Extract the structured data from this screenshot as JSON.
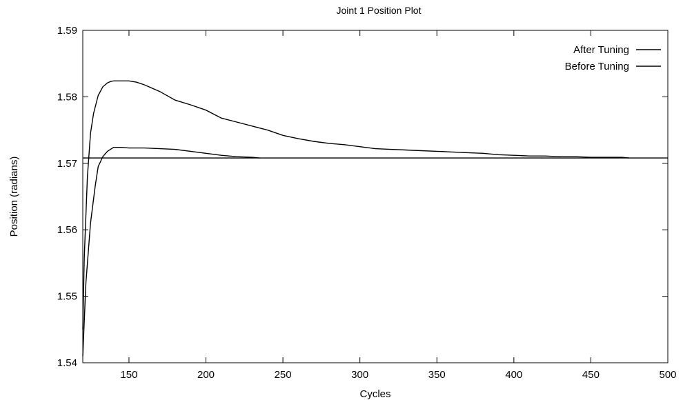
{
  "chart_data": {
    "type": "line",
    "title": "Joint 1 Position Plot",
    "xlabel": "Cycles",
    "ylabel": "Position (radians)",
    "xlim": [
      120,
      500
    ],
    "ylim": [
      1.54,
      1.59
    ],
    "xticks": [
      150,
      200,
      250,
      300,
      350,
      400,
      450,
      500
    ],
    "yticks": [
      1.54,
      1.55,
      1.56,
      1.57,
      1.58,
      1.59
    ],
    "legend": "top-right",
    "grid": false,
    "series": [
      {
        "name": "After Tuning",
        "x": [
          120,
          122,
          125,
          128,
          130,
          133,
          136,
          140,
          145,
          150,
          160,
          170,
          180,
          190,
          200,
          210,
          220,
          230,
          235
        ],
        "y": [
          1.541,
          1.552,
          1.561,
          1.5665,
          1.5695,
          1.571,
          1.5718,
          1.5724,
          1.5724,
          1.5723,
          1.5723,
          1.5722,
          1.5721,
          1.5718,
          1.5715,
          1.5712,
          1.571,
          1.5709,
          1.5708
        ]
      },
      {
        "name": "Before Tuning",
        "x": [
          120,
          121,
          123,
          125,
          127,
          130,
          133,
          136,
          138,
          140,
          145,
          150,
          155,
          160,
          170,
          180,
          190,
          200,
          210,
          220,
          230,
          240,
          250,
          260,
          270,
          280,
          290,
          300,
          310,
          320,
          330,
          340,
          350,
          360,
          370,
          380,
          390,
          400,
          410,
          420,
          430,
          440,
          450,
          460,
          470,
          475
        ],
        "y": [
          1.545,
          1.556,
          1.568,
          1.5745,
          1.5775,
          1.5802,
          1.5815,
          1.5821,
          1.5823,
          1.5824,
          1.5824,
          1.5824,
          1.5822,
          1.5818,
          1.5808,
          1.5795,
          1.5788,
          1.578,
          1.5768,
          1.5762,
          1.5756,
          1.575,
          1.5742,
          1.5737,
          1.5733,
          1.573,
          1.5728,
          1.5725,
          1.5722,
          1.5721,
          1.572,
          1.5719,
          1.5718,
          1.5717,
          1.5716,
          1.5715,
          1.5713,
          1.5712,
          1.5711,
          1.5711,
          1.571,
          1.571,
          1.5709,
          1.5709,
          1.5709,
          1.5708
        ]
      },
      {
        "name": "",
        "x": [
          120,
          500
        ],
        "y": [
          1.5708,
          1.5708
        ]
      }
    ]
  }
}
